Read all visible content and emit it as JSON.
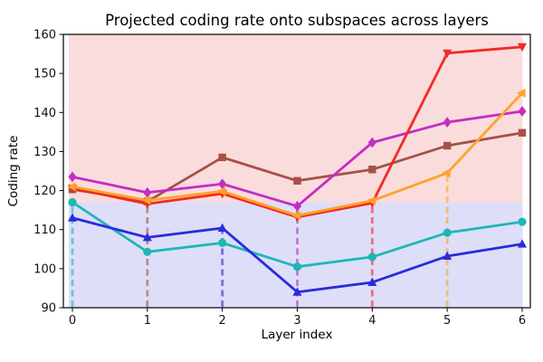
{
  "chart_data": {
    "type": "line",
    "title": "Projected coding rate onto subspaces across layers",
    "xlabel": "Layer index",
    "ylabel": "Coding rate",
    "xlim": [
      -0.1,
      6.1
    ],
    "ylim": [
      90,
      160
    ],
    "xticks": [
      0,
      1,
      2,
      3,
      4,
      5,
      6
    ],
    "yticks": [
      90,
      100,
      110,
      120,
      130,
      140,
      150,
      160
    ],
    "grid": false,
    "legend": "none",
    "x": [
      0,
      1,
      2,
      3,
      4,
      5,
      6
    ],
    "bands": [
      {
        "label": "lower-band",
        "ymin": 90,
        "ymax": 117,
        "color": "#dedef9"
      },
      {
        "label": "upper-band",
        "ymin": 117,
        "ymax": 160,
        "color": "#fadcdd"
      }
    ],
    "series": [
      {
        "id": "teal-circle",
        "marker": "circle",
        "color": "#1cb8b4",
        "stem_at_x": 0,
        "values": [
          117.0,
          104.3,
          106.6,
          100.5,
          103.0,
          109.2,
          112.0
        ]
      },
      {
        "id": "blue-triangle-up",
        "marker": "triangle-up",
        "color": "#2b2bdb",
        "stem_at_x": 2,
        "values": [
          113.0,
          108.0,
          110.4,
          94.0,
          96.5,
          103.2,
          106.3
        ]
      },
      {
        "id": "brown-square",
        "marker": "square",
        "color": "#a65147",
        "stem_at_x": 1,
        "values": [
          120.3,
          117.2,
          128.5,
          122.5,
          125.4,
          131.5,
          134.8
        ]
      },
      {
        "id": "magenta-diamond",
        "marker": "diamond",
        "color": "#c32dc3",
        "stem_at_x": 3,
        "values": [
          123.5,
          119.5,
          121.7,
          116.0,
          132.3,
          137.5,
          140.3
        ]
      },
      {
        "id": "red-triangle-down",
        "marker": "triangle-down",
        "color": "#f12b24",
        "stem_at_x": 4,
        "values": [
          120.6,
          116.6,
          119.2,
          113.2,
          116.8,
          155.2,
          156.8
        ]
      },
      {
        "id": "orange-triangle-left",
        "marker": "triangle-left",
        "color": "#ffa327",
        "stem_at_x": 5,
        "values": [
          121.0,
          117.5,
          119.8,
          113.6,
          117.4,
          124.5,
          145.0
        ]
      }
    ]
  }
}
